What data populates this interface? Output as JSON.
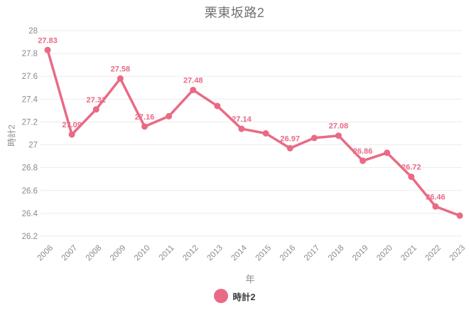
{
  "title": "栗東坂路2",
  "colors": {
    "accent": "#e96a85",
    "title_text": "#737373",
    "axis_text": "#8b8b8b",
    "grid": "#ebebeb",
    "legend_text": "#3c3c3c",
    "background": "#ffffff"
  },
  "chart_data": {
    "type": "line",
    "title": "栗東坂路2",
    "xlabel": "年",
    "ylabel": "時計2",
    "categories": [
      "2006",
      "2007",
      "2008",
      "2009",
      "2010",
      "2011",
      "2012",
      "2013",
      "2014",
      "2015",
      "2016",
      "2017",
      "2018",
      "2019",
      "2020",
      "2021",
      "2022",
      "2023"
    ],
    "series": [
      {
        "name": "時計2",
        "color": "#e96a85",
        "values": [
          27.83,
          27.09,
          27.31,
          27.58,
          27.16,
          27.25,
          27.48,
          27.34,
          27.14,
          27.1,
          26.97,
          27.06,
          27.08,
          26.86,
          26.93,
          26.72,
          26.46,
          26.38
        ]
      }
    ],
    "point_labels": [
      "27.83",
      "27.09",
      "27.31",
      "27.58",
      "27.16",
      "",
      "27.48",
      "",
      "27.14",
      "",
      "26.97",
      "",
      "27.08",
      "26.86",
      "",
      "26.72",
      "26.46",
      ""
    ],
    "ylim": [
      26.2,
      28
    ],
    "ytick_step": 0.2,
    "yticks": [
      "28",
      "27.8",
      "27.6",
      "27.4",
      "27.2",
      "27",
      "26.8",
      "26.6",
      "26.4",
      "26.2"
    ],
    "grid": true,
    "legend_position": "bottom",
    "legend": [
      {
        "label": "時計2",
        "color": "#e96a85"
      }
    ]
  }
}
